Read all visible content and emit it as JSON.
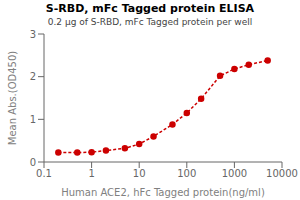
{
  "chart_data": {
    "type": "line",
    "title": "S-RBD, mFc Tagged protein ELISA",
    "subtitle": "0.2 μg of S-RBD, mFc Tagged protein per well",
    "xlabel": "Human ACE2, hFc Tagged protein(ng/ml)",
    "ylabel": "Mean Abs.(OD450)",
    "x": [
      0.2,
      0.5,
      1.0,
      2.0,
      5.0,
      10.0,
      20.0,
      50.0,
      100.0,
      200.0,
      500.0,
      1000.0,
      2000.0,
      5000.0
    ],
    "values": [
      0.22,
      0.22,
      0.23,
      0.27,
      0.32,
      0.42,
      0.6,
      0.88,
      1.15,
      1.48,
      2.02,
      2.18,
      2.28,
      2.38
    ],
    "color": "#CC0000",
    "marker": "circle",
    "line_style": "dashed",
    "log": "x",
    "xlim": [
      0.1,
      10000
    ],
    "ylim": [
      0,
      3.0
    ],
    "xticks": [
      0.1,
      1,
      10,
      100,
      1000,
      10000
    ],
    "yticks": [
      0,
      1,
      2,
      3
    ],
    "grid": false
  }
}
